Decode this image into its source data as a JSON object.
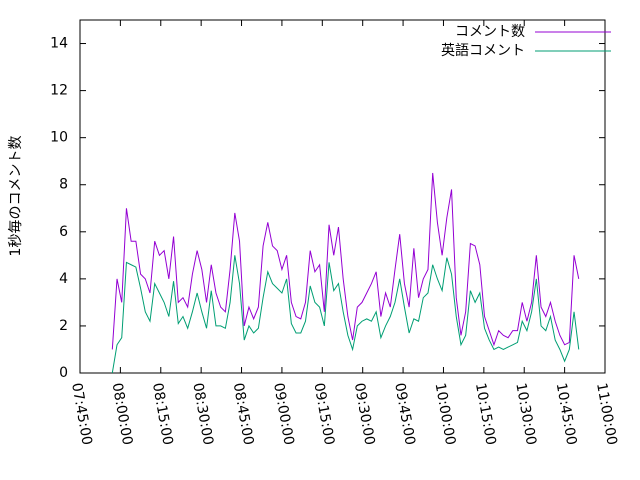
{
  "chart_data": {
    "type": "line",
    "y_label": "1秒毎のコメント数",
    "legend": "top-right",
    "ylim": [
      0,
      15
    ],
    "yticks": [
      0,
      2,
      4,
      6,
      8,
      10,
      12,
      14
    ],
    "xlim": [
      "07:45:00",
      "11:00:00"
    ],
    "xticks": [
      "07:45:00",
      "08:00:00",
      "08:15:00",
      "08:30:00",
      "08:45:00",
      "09:00:00",
      "09:15:00",
      "09:30:00",
      "09:45:00",
      "10:00:00",
      "10:15:00",
      "10:30:00",
      "10:45:00",
      "11:00:00"
    ],
    "x": [
      "07:57:00",
      "07:58:45",
      "08:00:30",
      "08:02:15",
      "08:04:00",
      "08:05:45",
      "08:07:30",
      "08:09:15",
      "08:11:00",
      "08:12:45",
      "08:14:30",
      "08:16:15",
      "08:18:00",
      "08:19:45",
      "08:21:30",
      "08:23:15",
      "08:25:00",
      "08:26:45",
      "08:28:30",
      "08:30:15",
      "08:32:00",
      "08:33:45",
      "08:35:30",
      "08:37:15",
      "08:39:00",
      "08:40:45",
      "08:42:30",
      "08:44:15",
      "08:46:00",
      "08:47:45",
      "08:49:30",
      "08:51:15",
      "08:53:00",
      "08:54:45",
      "08:56:30",
      "08:58:15",
      "09:00:00",
      "09:01:45",
      "09:03:30",
      "09:05:15",
      "09:07:00",
      "09:08:45",
      "09:10:30",
      "09:12:15",
      "09:14:00",
      "09:15:45",
      "09:17:30",
      "09:19:15",
      "09:21:00",
      "09:22:45",
      "09:24:30",
      "09:26:15",
      "09:28:00",
      "09:29:45",
      "09:31:30",
      "09:33:15",
      "09:35:00",
      "09:36:45",
      "09:38:30",
      "09:40:15",
      "09:42:00",
      "09:43:45",
      "09:45:30",
      "09:47:15",
      "09:49:00",
      "09:50:45",
      "09:52:30",
      "09:54:15",
      "09:56:00",
      "09:57:45",
      "09:59:30",
      "10:01:15",
      "10:03:00",
      "10:04:45",
      "10:06:30",
      "10:08:15",
      "10:10:00",
      "10:11:45",
      "10:13:30",
      "10:15:15",
      "10:17:00",
      "10:18:45",
      "10:20:30",
      "10:22:15",
      "10:24:00",
      "10:25:45",
      "10:27:30",
      "10:29:15",
      "10:31:00",
      "10:32:45",
      "10:34:30",
      "10:36:15",
      "10:38:00",
      "10:39:45",
      "10:41:30",
      "10:43:15",
      "10:45:00",
      "10:46:45",
      "10:48:30",
      "10:50:15"
    ],
    "series": [
      {
        "name": "コメント数",
        "color": "#9400d3",
        "values": [
          1.0,
          4.0,
          3.0,
          7.0,
          5.6,
          5.6,
          4.2,
          4.0,
          3.4,
          5.6,
          5.0,
          5.2,
          4.0,
          5.8,
          3.0,
          3.2,
          2.8,
          4.2,
          5.2,
          4.4,
          3.0,
          4.6,
          3.4,
          2.8,
          2.6,
          4.4,
          6.8,
          5.6,
          2.0,
          2.8,
          2.3,
          2.8,
          5.4,
          6.4,
          5.4,
          5.2,
          4.4,
          5.0,
          3.0,
          2.4,
          2.3,
          3.0,
          5.2,
          4.3,
          4.6,
          2.6,
          6.3,
          5.0,
          6.2,
          4.0,
          2.4,
          1.4,
          2.8,
          3.0,
          3.4,
          3.8,
          4.3,
          2.4,
          3.4,
          2.8,
          4.4,
          5.9,
          3.8,
          2.8,
          5.3,
          3.2,
          4.0,
          4.4,
          8.5,
          6.4,
          5.0,
          6.6,
          7.8,
          3.2,
          1.6,
          2.6,
          5.5,
          5.4,
          4.6,
          2.4,
          1.8,
          1.2,
          1.8,
          1.6,
          1.5,
          1.8,
          1.8,
          3.0,
          2.2,
          3.0,
          5.0,
          2.8,
          2.4,
          3.0,
          2.2,
          1.6,
          1.2,
          1.3,
          5.0,
          4.0
        ]
      },
      {
        "name": "英語コメント",
        "color": "#009e73",
        "values": [
          0,
          1.2,
          1.5,
          4.7,
          4.6,
          4.5,
          3.6,
          2.6,
          2.2,
          3.8,
          3.4,
          3.0,
          2.4,
          3.9,
          2.1,
          2.4,
          1.9,
          2.6,
          3.4,
          2.6,
          1.9,
          3.5,
          2.0,
          2.0,
          1.9,
          3.0,
          5.0,
          3.8,
          1.4,
          2.0,
          1.7,
          1.9,
          3.2,
          4.3,
          3.8,
          3.6,
          3.4,
          4.0,
          2.1,
          1.7,
          1.7,
          2.2,
          3.7,
          3.0,
          2.8,
          2.0,
          4.7,
          3.5,
          3.8,
          2.6,
          1.6,
          1.0,
          2.0,
          2.2,
          2.3,
          2.2,
          2.6,
          1.5,
          2.0,
          2.4,
          3.0,
          4.0,
          2.8,
          1.7,
          2.3,
          2.2,
          3.2,
          3.4,
          4.6,
          4.0,
          3.5,
          4.9,
          4.2,
          2.4,
          1.2,
          1.6,
          3.5,
          3.0,
          3.4,
          1.9,
          1.4,
          1.0,
          1.1,
          1.0,
          1.1,
          1.2,
          1.3,
          2.2,
          1.8,
          2.6,
          4.0,
          2.0,
          1.8,
          2.4,
          1.4,
          1.0,
          0.5,
          1.0,
          2.6,
          1.0
        ]
      }
    ]
  }
}
